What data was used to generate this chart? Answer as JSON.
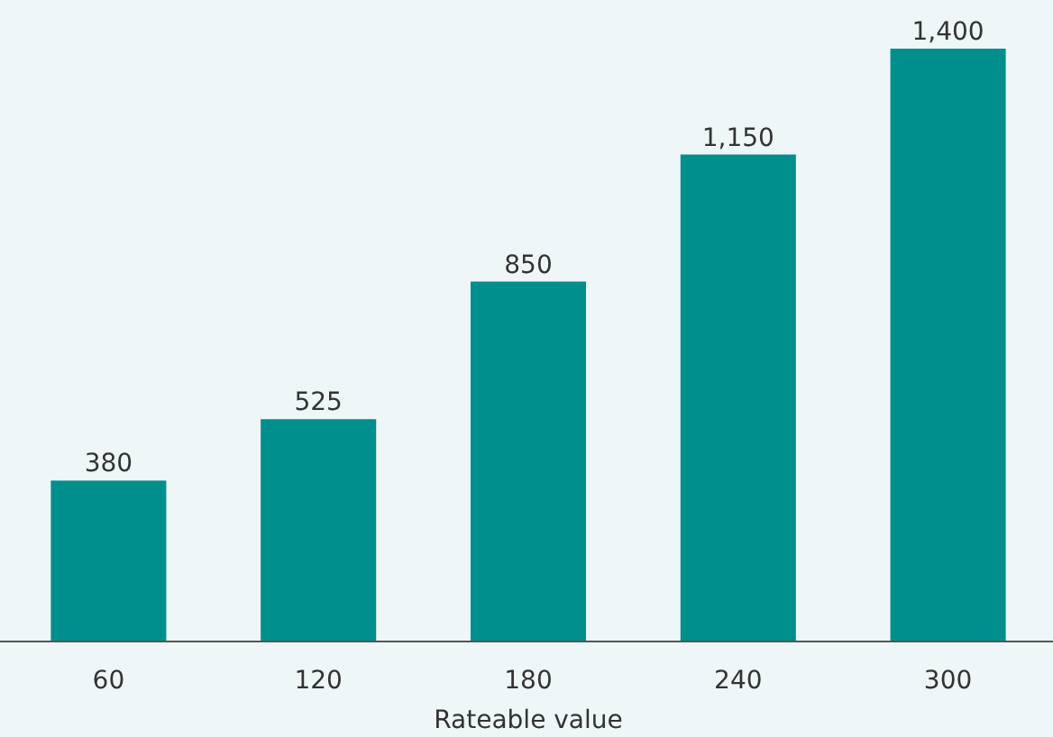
{
  "chart_data": {
    "type": "bar",
    "xlabel": "Rateable value",
    "categories": [
      "60",
      "120",
      "180",
      "240",
      "300"
    ],
    "values": [
      380,
      525,
      850,
      1150,
      1400
    ],
    "value_labels": [
      "380",
      "525",
      "850",
      "1,150",
      "1,400"
    ],
    "color": "#008f8c"
  }
}
